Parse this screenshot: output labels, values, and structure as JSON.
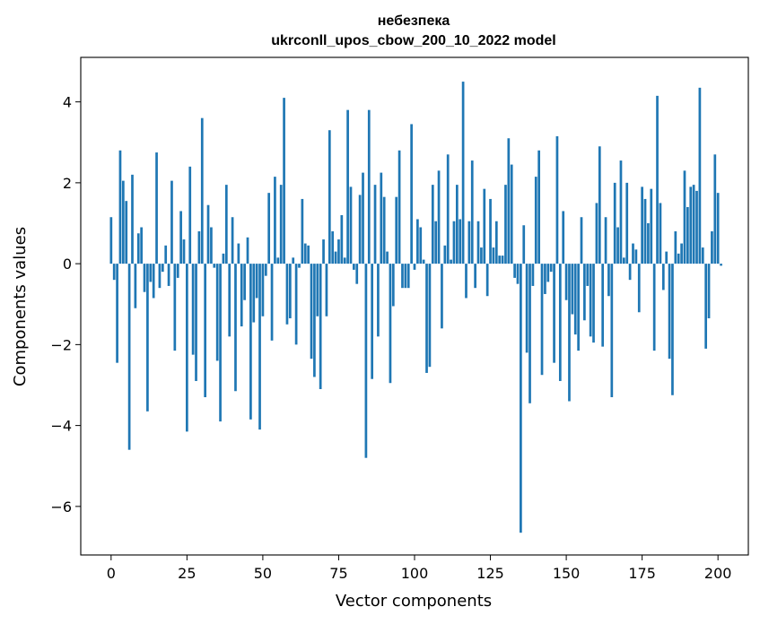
{
  "chart_data": {
    "type": "bar",
    "title": "небезпека",
    "subtitle": "ukrconll_upos_cbow_200_10_2022 model",
    "xlabel": "Vector components",
    "ylabel": "Components values",
    "xlim": [
      -10,
      210
    ],
    "ylim": [
      -7.2,
      5.1
    ],
    "xticks": [
      0,
      25,
      50,
      75,
      100,
      125,
      150,
      175,
      200
    ],
    "yticks": [
      -6,
      -4,
      -2,
      0,
      2,
      4
    ],
    "ytick_labels": [
      "−6",
      "−4",
      "−2",
      "0",
      "2",
      "4"
    ],
    "grid": false,
    "bar_color": "#1f77b4",
    "values": [
      1.15,
      -0.4,
      -2.45,
      2.8,
      2.05,
      1.55,
      -4.6,
      2.2,
      -1.1,
      0.75,
      0.9,
      -0.7,
      -3.65,
      -0.45,
      -0.85,
      2.75,
      -0.6,
      -0.2,
      0.45,
      -0.55,
      2.05,
      -2.15,
      -0.35,
      1.3,
      0.6,
      -4.15,
      2.4,
      -2.25,
      -2.9,
      0.8,
      3.6,
      -3.3,
      1.45,
      0.9,
      -0.1,
      -2.4,
      -3.9,
      0.25,
      1.95,
      -1.8,
      1.15,
      -3.15,
      0.5,
      -1.55,
      -0.9,
      0.65,
      -3.85,
      -1.45,
      -0.85,
      -4.1,
      -1.3,
      -0.3,
      1.75,
      -1.9,
      2.15,
      0.15,
      1.95,
      4.1,
      -1.5,
      -1.35,
      0.15,
      -2.0,
      -0.1,
      1.6,
      0.5,
      0.45,
      -2.35,
      -2.8,
      -1.3,
      -3.1,
      0.6,
      -1.3,
      3.3,
      0.8,
      0.3,
      0.6,
      1.2,
      0.15,
      3.8,
      1.9,
      -0.15,
      -0.5,
      1.7,
      2.25,
      -4.8,
      3.8,
      -2.85,
      1.95,
      -1.8,
      2.25,
      1.65,
      0.3,
      -2.95,
      -1.05,
      1.65,
      2.8,
      -0.6,
      -0.6,
      -0.6,
      3.45,
      -0.15,
      1.1,
      0.9,
      0.1,
      -2.7,
      -2.55,
      1.95,
      1.05,
      2.3,
      -1.6,
      0.45,
      2.7,
      0.1,
      1.05,
      1.95,
      1.1,
      4.5,
      -0.85,
      1.05,
      2.55,
      -0.6,
      1.05,
      0.4,
      1.85,
      -0.8,
      1.6,
      0.4,
      1.05,
      0.2,
      0.2,
      1.95,
      3.1,
      2.45,
      -0.35,
      -0.5,
      -6.65,
      0.95,
      -2.2,
      -3.45,
      -0.55,
      2.15,
      2.8,
      -2.75,
      -0.75,
      -0.45,
      -0.2,
      -2.45,
      3.15,
      -2.9,
      1.3,
      -0.9,
      -3.4,
      -1.25,
      -1.75,
      -2.15,
      1.15,
      -1.4,
      -0.55,
      -1.8,
      -1.95,
      1.5,
      2.9,
      -2.05,
      1.15,
      -0.8,
      -3.3,
      2.0,
      0.9,
      2.55,
      0.15,
      2.0,
      -0.4,
      0.5,
      0.35,
      -1.2,
      1.9,
      1.6,
      1.0,
      1.85,
      -2.15,
      4.15,
      1.5,
      -0.65,
      0.3,
      -2.35,
      -3.25,
      0.8,
      0.25,
      0.5,
      2.3,
      1.4,
      1.9,
      1.95,
      1.8,
      4.35,
      0.4,
      -2.1,
      -1.35,
      0.8,
      2.7,
      1.75,
      -0.05
    ]
  }
}
